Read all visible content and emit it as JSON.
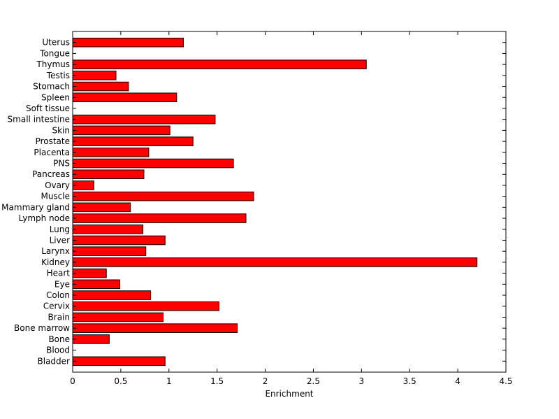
{
  "chart_data": {
    "type": "bar",
    "orientation": "horizontal",
    "title": "",
    "xlabel": "Enrichment",
    "ylabel": "",
    "xlim": [
      0,
      4.5
    ],
    "xticks": [
      "0",
      "0.5",
      "1",
      "1.5",
      "2",
      "2.5",
      "3",
      "3.5",
      "4",
      "4.5"
    ],
    "grid": false,
    "legend": "none",
    "bar_color": "#ff0000",
    "bar_edge_color": "#000000",
    "categories": [
      "Uterus",
      "Tongue",
      "Thymus",
      "Testis",
      "Stomach",
      "Spleen",
      "Soft tissue",
      "Small intestine",
      "Skin",
      "Prostate",
      "Placenta",
      "PNS",
      "Pancreas",
      "Ovary",
      "Muscle",
      "Mammary gland",
      "Lymph node",
      "Lung",
      "Liver",
      "Larynx",
      "Kidney",
      "Heart",
      "Eye",
      "Colon",
      "Cervix",
      "Brain",
      "Bone marrow",
      "Bone",
      "Blood",
      "Bladder"
    ],
    "values": [
      1.15,
      0,
      3.05,
      0.45,
      0.58,
      1.08,
      0,
      1.48,
      1.01,
      1.25,
      0.79,
      1.67,
      0.74,
      0.22,
      1.88,
      0.6,
      1.8,
      0.73,
      0.96,
      0.76,
      4.2,
      0.35,
      0.49,
      0.81,
      1.52,
      0.94,
      1.71,
      0.38,
      0,
      0.96
    ]
  }
}
